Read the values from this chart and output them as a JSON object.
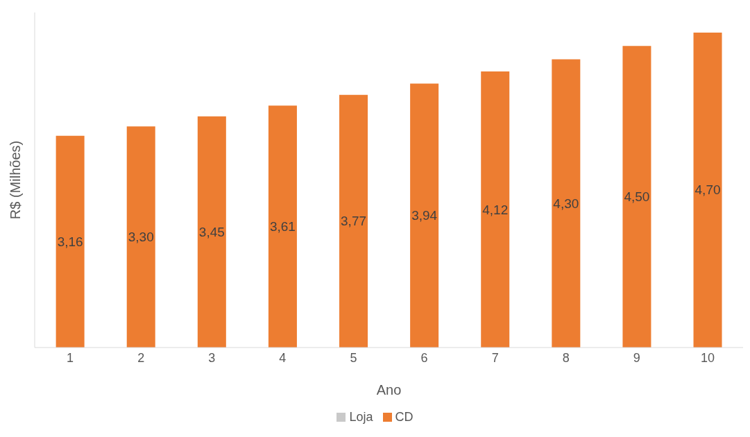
{
  "chart_data": {
    "type": "bar",
    "xlabel": "Ano",
    "ylabel": "R$ (Milhões)",
    "categories": [
      "1",
      "2",
      "3",
      "4",
      "5",
      "6",
      "7",
      "8",
      "9",
      "10"
    ],
    "series": [
      {
        "name": "Loja",
        "color": "#c9c9c9",
        "values": [
          null,
          null,
          null,
          null,
          null,
          null,
          null,
          null,
          null,
          null
        ]
      },
      {
        "name": "CD",
        "color": "#ed7d31",
        "values": [
          3.16,
          3.3,
          3.45,
          3.61,
          3.77,
          3.94,
          4.12,
          4.3,
          4.5,
          4.7
        ],
        "value_labels": [
          "3,16",
          "3,30",
          "3,45",
          "3,61",
          "3,77",
          "3,94",
          "4,12",
          "4,30",
          "4,50",
          "4,70"
        ]
      }
    ],
    "stacked": true,
    "ylim": [
      0,
      5
    ],
    "tick_labels": "x",
    "grid": false,
    "legend": "bottom"
  }
}
